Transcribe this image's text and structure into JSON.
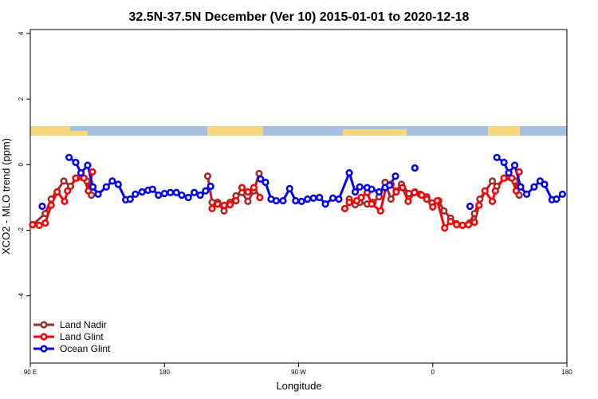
{
  "chart_data": {
    "type": "line",
    "title": "32.5N-37.5N December (Ver 10)   2015-01-01 to 2020-12-18",
    "x_label": "Longitude",
    "y_label": "XCO2 - MLO trend (ppm)",
    "xlim": [
      90,
      450
    ],
    "ylim": [
      -6.05,
      4.12
    ],
    "xticks": [
      {
        "value": 90,
        "label": "90 E"
      },
      180,
      {
        "value": 270,
        "label": "90 W"
      },
      {
        "value": 360,
        "label": "0"
      },
      {
        "value": 450,
        "label": "180"
      }
    ],
    "yticks": [
      4,
      2,
      0,
      -2,
      -4
    ],
    "legend": "bottom-left",
    "series": [
      {
        "name": "Land Nadir",
        "color": "#a52a2a",
        "x": [
          91.6,
          100,
          104,
          112.5,
          117,
          121,
          128,
          131,
          null,
          209,
          212,
          215.7,
          220,
          224,
          228,
          232,
          236,
          240,
          243.5,
          null,
          304,
          308,
          311,
          316,
          320,
          324,
          328,
          332,
          335.5,
          339,
          344,
          348,
          351.5,
          356,
          359.5,
          364,
          367.5,
          372,
          376,
          380,
          384.6,
          388,
          391.6,
          400,
          403,
          408,
          415,
          418
        ],
        "values": [
          -1.83,
          -1.49,
          -1.05,
          -0.5,
          -0.66,
          -0.41,
          -0.5,
          -0.93,
          null,
          -0.35,
          -1.15,
          -1.15,
          -1.41,
          -1.15,
          -0.95,
          -0.85,
          -1.12,
          -0.8,
          -0.27,
          null,
          -1.05,
          -1.22,
          -1.15,
          -1.2,
          -1.15,
          -0.98,
          -0.54,
          -1.05,
          -0.8,
          -0.6,
          -0.88,
          -0.83,
          -0.9,
          -0.98,
          -1.17,
          -1.1,
          -1.41,
          -1.63,
          -1.8,
          -1.85,
          -1.78,
          -1.49,
          -1.05,
          -0.5,
          -0.66,
          -0.41,
          -0.5,
          -0.93
        ]
      },
      {
        "name": "Land Glint",
        "color": "#ff0000",
        "x": [
          91.6,
          96,
          100,
          104,
          108,
          113,
          115,
          120.5,
          126,
          129,
          131.7,
          null,
          212,
          215.7,
          220,
          224,
          228,
          232,
          236,
          240,
          244,
          null,
          301,
          304,
          309,
          312,
          316,
          319,
          325,
          328.5,
          332,
          335.5,
          339.7,
          343.5,
          347.7,
          352.5,
          356,
          360,
          363,
          368,
          372,
          376,
          380,
          384,
          388,
          391,
          395,
          400,
          402,
          407.8,
          413,
          416,
          418
        ],
        "values": [
          -1.83,
          -1.85,
          -1.78,
          -1.24,
          -0.83,
          -1.12,
          -0.8,
          -0.41,
          -0.41,
          -0.8,
          -0.22,
          null,
          -1.34,
          -1.2,
          -1.24,
          -1.22,
          -1.1,
          -0.7,
          -0.83,
          -0.7,
          -1.0,
          null,
          -1.34,
          -1.15,
          -1.1,
          -1.0,
          -0.85,
          -1.2,
          -1.41,
          -0.7,
          -0.6,
          -0.83,
          -0.7,
          -1.12,
          -0.85,
          -0.93,
          -1.05,
          -1.29,
          -1.1,
          -1.93,
          -1.73,
          -1.83,
          -1.85,
          -1.83,
          -1.76,
          -1.24,
          -0.8,
          -1.12,
          -0.8,
          -0.41,
          -0.41,
          -0.8,
          -0.22
        ]
      },
      {
        "name": "Ocean Glint",
        "color": "#0000ff",
        "x": [
          98,
          null,
          116,
          120.5,
          124,
          128.5,
          132,
          135.5,
          141,
          145,
          149,
          154,
          157,
          160.5,
          165,
          169,
          172,
          176,
          180,
          184,
          188,
          191.6,
          196,
          200,
          204,
          207.6,
          211,
          null,
          244.5,
          247.8,
          251.5,
          255,
          259.5,
          264,
          268,
          272,
          276,
          280,
          284,
          288,
          293,
          297,
          304,
          308,
          311,
          316,
          319,
          324,
          328,
          331,
          335,
          null,
          348,
          null,
          385,
          null,
          403,
          407.8,
          411,
          415,
          419,
          423,
          428,
          432,
          435,
          440,
          443,
          447
        ],
        "values": [
          -1.27,
          null,
          0.22,
          0.07,
          -0.25,
          -0.02,
          -0.68,
          -0.9,
          -0.68,
          -0.5,
          -0.6,
          -1.07,
          -1.05,
          -0.9,
          -0.83,
          -0.78,
          -0.75,
          -0.93,
          -0.88,
          -0.85,
          -0.85,
          -0.93,
          -1.0,
          -0.85,
          -0.93,
          -0.8,
          -0.66,
          null,
          -0.44,
          -0.54,
          -1.05,
          -1.1,
          -1.1,
          -0.73,
          -1.1,
          -1.12,
          -1.05,
          -1.02,
          -1.0,
          -1.2,
          -1.02,
          -1.05,
          -0.25,
          -0.83,
          -0.68,
          -0.7,
          -0.75,
          -0.83,
          -0.7,
          -0.63,
          -0.35,
          null,
          -0.1,
          null,
          -1.27,
          null,
          0.22,
          0.07,
          -0.25,
          -0.02,
          -0.68,
          -0.9,
          -0.68,
          -0.5,
          -0.6,
          -1.07,
          -1.05,
          -0.9
        ]
      }
    ]
  }
}
